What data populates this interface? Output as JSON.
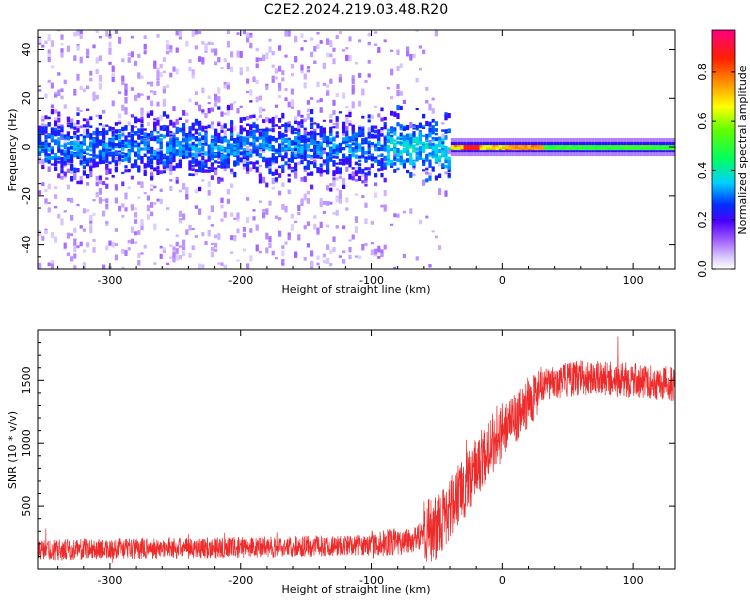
{
  "figure": {
    "title": "C2E2.2024.219.03.48.R20"
  },
  "colors": {
    "snr_trace": "#ee2b2b",
    "axis": "#000000",
    "colormap": [
      "#ffffff",
      "#b0a0ff",
      "#5a00ff",
      "#0000ff",
      "#00ffff",
      "#00ff00",
      "#ffff00",
      "#ff8000",
      "#ff0000",
      "#ff0080"
    ]
  },
  "chart_data": [
    {
      "type": "heatmap",
      "title": "C2E2.2024.219.03.48.R20",
      "xlabel": "Height of straight line (km)",
      "ylabel": "Frequency (Hz)",
      "xlim": [
        -355,
        132
      ],
      "ylim": [
        -50,
        48
      ],
      "xticks": [
        -300,
        -200,
        -100,
        0,
        100
      ],
      "yticks": [
        -40,
        -20,
        0,
        20,
        40
      ],
      "grid": false,
      "colorbar": {
        "label": "Normalized spectral amplitude",
        "range": [
          0.0,
          0.97
        ],
        "ticks": [
          "0.0",
          "0.2",
          "0.4",
          "0.6",
          "0.8"
        ],
        "tick_values": [
          0.0,
          0.2,
          0.4,
          0.6,
          0.8
        ]
      },
      "description_values": {
        "noise_band_center_hz": 0,
        "noisy_region_x": [
          -355,
          -40
        ],
        "coherent_line_x": [
          -40,
          132
        ],
        "peak_amplitude_near_x": -25
      }
    },
    {
      "type": "line",
      "xlabel": "Height of straight line (km)",
      "ylabel": "SNR (10 * v/v)",
      "xlim": [
        -355,
        132
      ],
      "ylim": [
        0,
        1900
      ],
      "xticks": [
        -300,
        -200,
        -100,
        0,
        100
      ],
      "yticks": [
        500,
        1000,
        1500
      ],
      "grid": false,
      "series": [
        {
          "x": [
            -355,
            -300,
            -250,
            -200,
            -150,
            -100,
            -70,
            -50,
            -40,
            -30,
            -20,
            -10,
            0,
            10,
            20,
            30,
            40,
            60,
            80,
            100,
            120,
            132
          ],
          "values": [
            150,
            160,
            165,
            170,
            180,
            190,
            230,
            330,
            480,
            640,
            800,
            990,
            1090,
            1200,
            1330,
            1440,
            1490,
            1520,
            1510,
            1500,
            1480,
            1470
          ]
        }
      ]
    }
  ]
}
